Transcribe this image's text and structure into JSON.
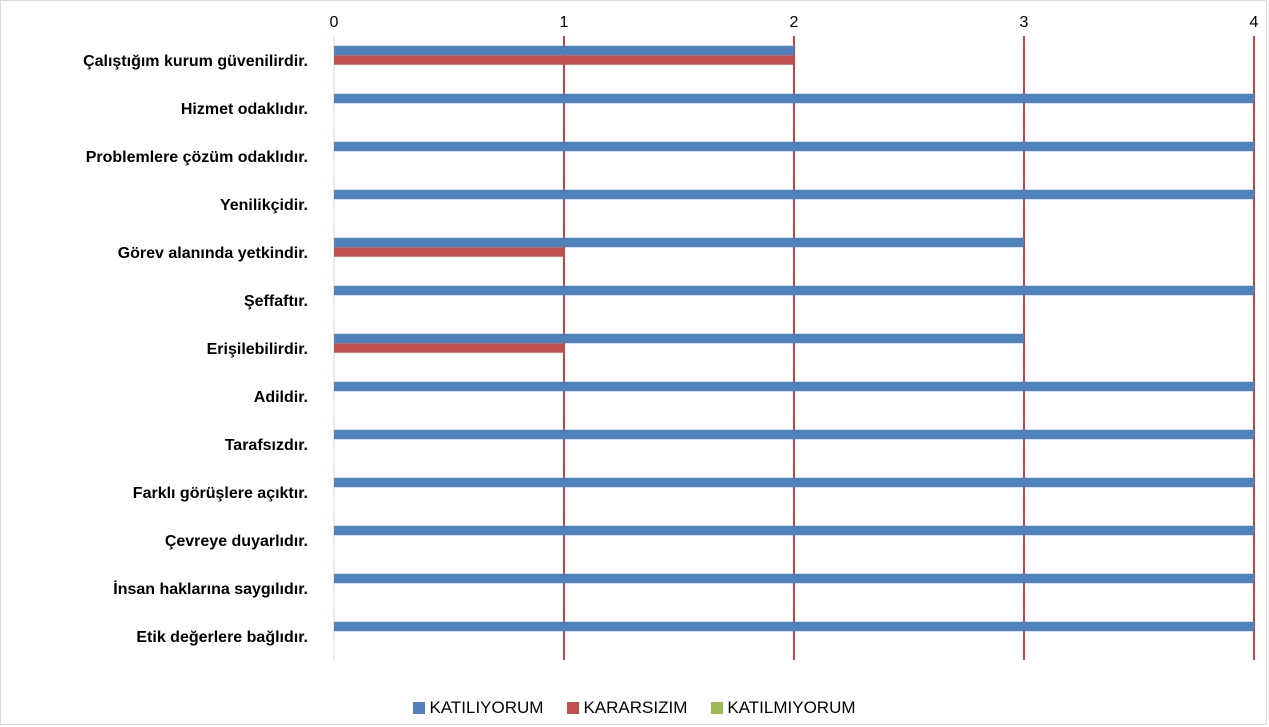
{
  "chart_data": {
    "type": "bar",
    "orientation": "horizontal",
    "categories": [
      "Çalıştığım kurum güvenilirdir.",
      "Hizmet odaklıdır.",
      "Problemlere çözüm odaklıdır.",
      "Yenilikçidir.",
      "Görev alanında yetkindir.",
      "Şeffaftır.",
      "Erişilebilirdir.",
      "Adildir.",
      "Tarafsızdır.",
      "Farklı görüşlere açıktır.",
      "Çevreye duyarlıdır.",
      "İnsan haklarına saygılıdır.",
      "Etik değerlere bağlıdır."
    ],
    "series": [
      {
        "name": "KATILIYORUM",
        "color": "#4f81bd",
        "values": [
          2,
          4,
          4,
          4,
          3,
          4,
          3,
          4,
          4,
          4,
          4,
          4,
          4
        ]
      },
      {
        "name": "KARARSIZIM",
        "color": "#c0504d",
        "values": [
          2,
          0,
          0,
          0,
          1,
          0,
          1,
          0,
          0,
          0,
          0,
          0,
          0
        ]
      },
      {
        "name": "KATILMIYORUM",
        "color": "#9bbb59",
        "values": [
          0,
          0,
          0,
          0,
          0,
          0,
          0,
          0,
          0,
          0,
          0,
          0,
          0
        ]
      }
    ],
    "xticks": [
      "0",
      "1",
      "2",
      "3",
      "4"
    ],
    "xlim": [
      0,
      4
    ],
    "x_axis_position": "top",
    "gridline_color": "#c00000",
    "grid": true,
    "legend_position": "bottom",
    "title": "",
    "xlabel": "",
    "ylabel": ""
  }
}
